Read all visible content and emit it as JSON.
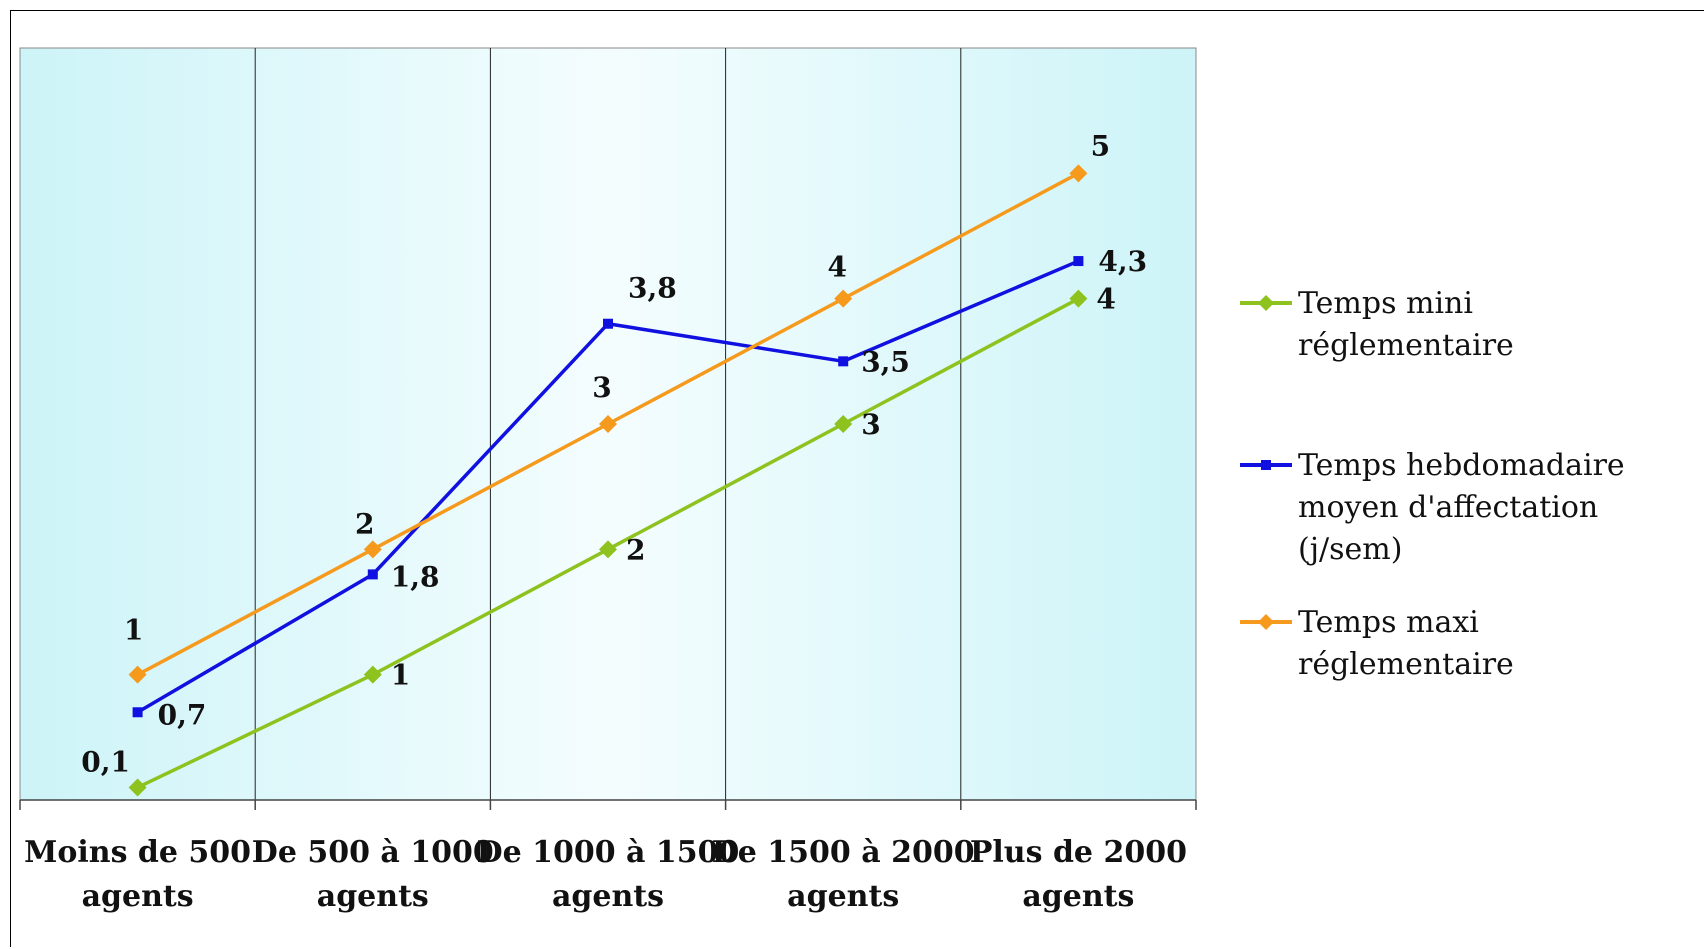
{
  "chart_data": {
    "type": "line",
    "title": "",
    "xlabel": "",
    "ylabel": "",
    "categories": [
      [
        "Moins de 500",
        "agents"
      ],
      [
        "De 500 à 1000",
        "agents"
      ],
      [
        "De 1000 à 1500",
        "agents"
      ],
      [
        "De 1500 à 2000",
        "agents"
      ],
      [
        "Plus de 2000",
        "agents"
      ]
    ],
    "ylim": [
      0,
      6
    ],
    "grid": "vertical",
    "legend_position": "right",
    "series": [
      {
        "name_lines": [
          "Temps  mini",
          "réglementaire"
        ],
        "values": [
          0.1,
          1,
          2,
          3,
          4
        ],
        "labels": [
          "0,1",
          "1",
          "2",
          "3",
          "4"
        ],
        "color": "#8dc21f",
        "marker": "diamond"
      },
      {
        "name_lines": [
          "Temps hebdomadaire",
          "moyen d'affectation",
          "(j/sem)"
        ],
        "values": [
          0.7,
          1.8,
          3.8,
          3.5,
          4.3
        ],
        "labels": [
          "0,7",
          "1,8",
          "3,8",
          "3,5",
          "4,3"
        ],
        "color": "#1010e0",
        "marker": "square"
      },
      {
        "name_lines": [
          "Temps maxi",
          "réglementaire"
        ],
        "values": [
          1,
          2,
          3,
          4,
          5
        ],
        "labels": [
          "1",
          "2",
          "3",
          "4",
          "5"
        ],
        "color": "#f59a1c",
        "marker": "diamond"
      }
    ],
    "colors": {
      "plot_background_edge": "#cdf4f8",
      "plot_background_center": "#f4fdfe"
    }
  }
}
